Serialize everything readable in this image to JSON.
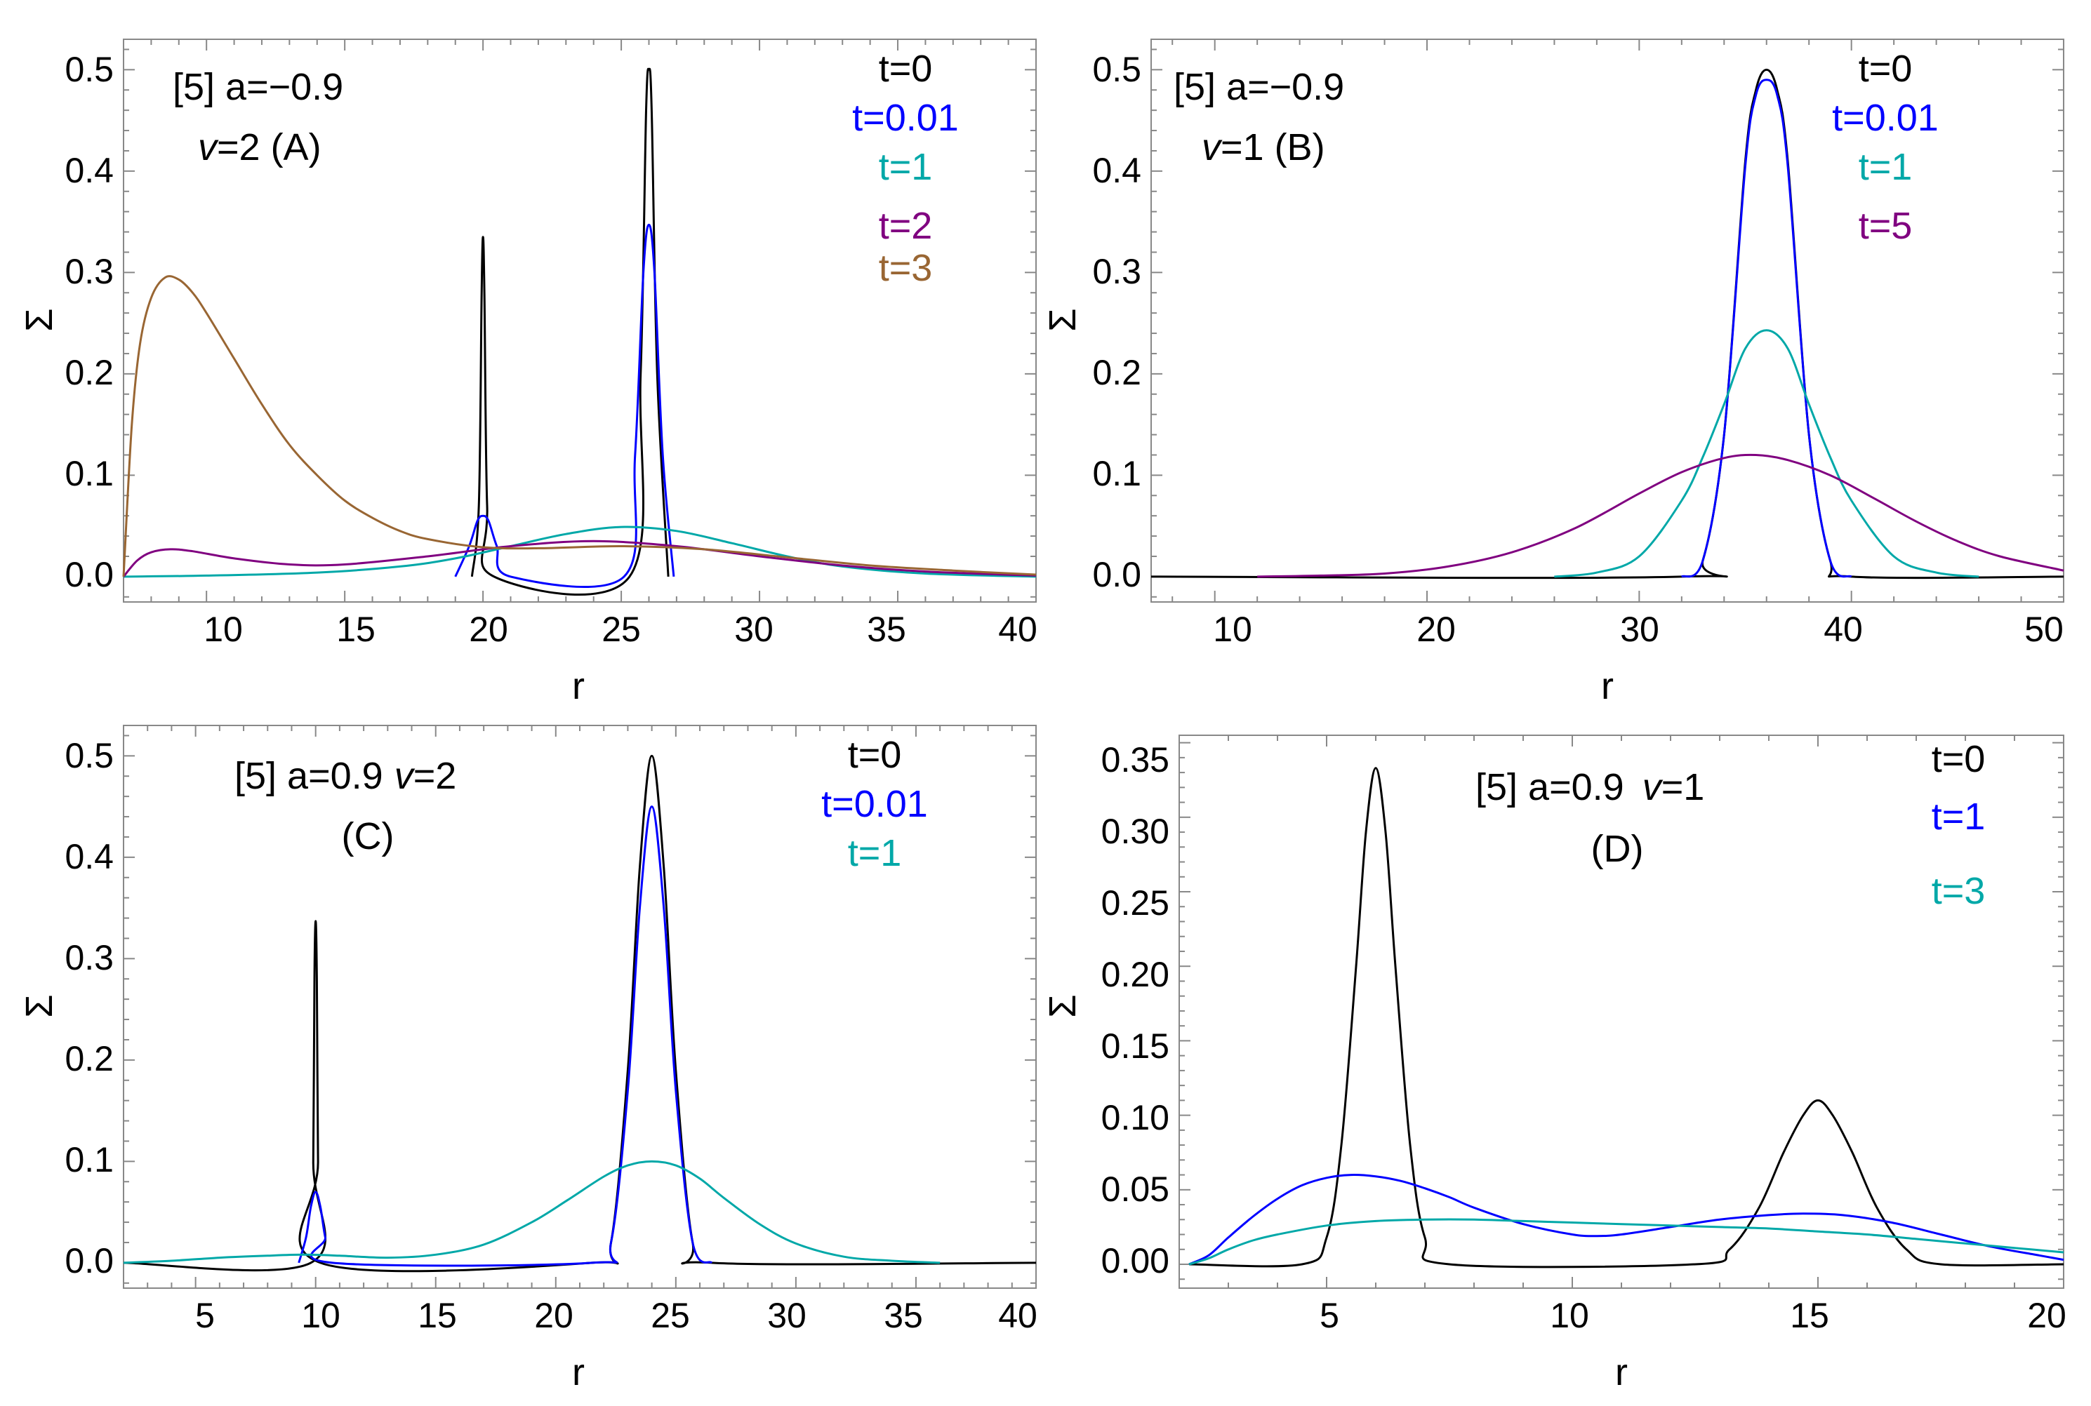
{
  "figure": {
    "colors": {
      "black": "#000000",
      "blue": "#0000ff",
      "cyan": "#00a8a8",
      "purple": "#800080",
      "brown": "#996633",
      "frame": "#888888"
    }
  },
  "chart_data": [
    {
      "id": "A",
      "type": "line",
      "xlabel": "r",
      "ylabel": "Σ",
      "xlim": [
        7,
        40
      ],
      "ylim": [
        -0.025,
        0.53
      ],
      "xticks": [
        10,
        15,
        20,
        25,
        30,
        35,
        40
      ],
      "xtick_labels": [
        "10",
        "15",
        "20",
        "25",
        "30",
        "35",
        "40"
      ],
      "yticks": [
        0,
        0.1,
        0.2,
        0.3,
        0.4,
        0.5
      ],
      "ytick_labels": [
        "0.0",
        "0.1",
        "0.2",
        "0.3",
        "0.4",
        "0.5"
      ],
      "annotation": [
        "[5] a=−0.9",
        "v",
        "=2 (A)"
      ],
      "legend": [
        "t=0",
        "t=0.01",
        "t=1",
        "t=2",
        "t=3"
      ],
      "series": [
        {
          "name": "t=0",
          "color": "black",
          "x": [
            19.6,
            19.85,
            19.95,
            20.0,
            20.05,
            20.15,
            20.4,
            25.3,
            25.7,
            25.9,
            26.0,
            26.1,
            26.3,
            26.7
          ],
          "y": [
            0,
            0.07,
            0.28,
            0.335,
            0.28,
            0.07,
            0,
            0,
            0.2,
            0.46,
            0.5,
            0.46,
            0.2,
            0
          ]
        },
        {
          "name": "t=0.01",
          "color": "blue",
          "x": [
            19.0,
            19.5,
            19.8,
            20.0,
            20.2,
            20.5,
            21.0,
            25.1,
            25.5,
            25.8,
            26.0,
            26.2,
            26.5,
            26.9
          ],
          "y": [
            0,
            0.03,
            0.055,
            0.06,
            0.055,
            0.03,
            0,
            0,
            0.12,
            0.3,
            0.347,
            0.3,
            0.12,
            0
          ]
        },
        {
          "name": "t=1",
          "color": "cyan",
          "x": [
            7,
            10,
            14,
            17,
            19,
            21,
            23,
            25,
            27,
            29,
            31,
            33,
            36,
            40
          ],
          "y": [
            0,
            0.001,
            0.004,
            0.01,
            0.018,
            0.03,
            0.042,
            0.049,
            0.045,
            0.033,
            0.02,
            0.01,
            0.003,
            0
          ]
        },
        {
          "name": "t=2",
          "color": "purple",
          "x": [
            7,
            7.5,
            8,
            8.7,
            9.5,
            11,
            13,
            15,
            18,
            21,
            24,
            27,
            30,
            33,
            36,
            40
          ],
          "y": [
            0,
            0.016,
            0.024,
            0.027,
            0.025,
            0.018,
            0.012,
            0.012,
            0.02,
            0.03,
            0.035,
            0.03,
            0.02,
            0.011,
            0.005,
            0.001
          ]
        },
        {
          "name": "t=3",
          "color": "brown",
          "x": [
            7,
            7.3,
            7.6,
            8.0,
            8.5,
            9.0,
            9.5,
            10,
            11,
            12,
            13,
            14,
            15,
            16,
            17,
            18,
            20,
            22,
            25,
            28,
            31,
            34,
            37,
            40
          ],
          "y": [
            0,
            0.15,
            0.23,
            0.275,
            0.295,
            0.293,
            0.28,
            0.26,
            0.215,
            0.17,
            0.13,
            0.1,
            0.075,
            0.058,
            0.045,
            0.037,
            0.029,
            0.028,
            0.03,
            0.027,
            0.019,
            0.011,
            0.006,
            0.002
          ]
        }
      ]
    },
    {
      "id": "B",
      "type": "line",
      "xlabel": "r",
      "ylabel": "Σ",
      "xlim": [
        7,
        50
      ],
      "ylim": [
        -0.025,
        0.53
      ],
      "xticks": [
        10,
        20,
        30,
        40,
        50
      ],
      "xtick_labels": [
        "10",
        "20",
        "30",
        "40",
        "50"
      ],
      "yticks": [
        0,
        0.1,
        0.2,
        0.3,
        0.4,
        0.5
      ],
      "ytick_labels": [
        "0.0",
        "0.1",
        "0.2",
        "0.3",
        "0.4",
        "0.5"
      ],
      "annotation": [
        "[5] a=−0.9",
        "v",
        "=1 (B)"
      ],
      "legend": [
        "t=0",
        "t=0.01",
        "t=1",
        "t=5"
      ],
      "series": [
        {
          "name": "t=0",
          "color": "black",
          "x": [
            7,
            32.0,
            33.0,
            34.0,
            35.0,
            35.5,
            36.0,
            36.5,
            37.0,
            38.0,
            39.0,
            40.0,
            50
          ],
          "y": [
            0,
            0,
            0.016,
            0.14,
            0.41,
            0.48,
            0.5,
            0.48,
            0.41,
            0.14,
            0.016,
            0,
            0
          ]
        },
        {
          "name": "t=0.01",
          "color": "blue",
          "x": [
            32.0,
            33.0,
            34.0,
            35.0,
            35.5,
            36.0,
            36.5,
            37.0,
            38.0,
            39.0,
            40.0
          ],
          "y": [
            0,
            0.016,
            0.14,
            0.405,
            0.475,
            0.49,
            0.475,
            0.405,
            0.14,
            0.016,
            0
          ]
        },
        {
          "name": "t=1",
          "color": "cyan",
          "x": [
            26,
            28,
            30,
            32,
            33,
            34,
            35,
            36,
            37,
            38,
            39,
            40,
            42,
            44,
            46
          ],
          "y": [
            0,
            0.004,
            0.02,
            0.075,
            0.118,
            0.17,
            0.225,
            0.243,
            0.225,
            0.17,
            0.118,
            0.075,
            0.02,
            0.004,
            0
          ]
        },
        {
          "name": "t=5",
          "color": "purple",
          "x": [
            12,
            15,
            18,
            21,
            24,
            27,
            30,
            32,
            34,
            35.5,
            37,
            39,
            41,
            43,
            45,
            47,
            50
          ],
          "y": [
            0,
            0.001,
            0.003,
            0.01,
            0.024,
            0.048,
            0.082,
            0.103,
            0.117,
            0.12,
            0.115,
            0.1,
            0.078,
            0.055,
            0.035,
            0.02,
            0.006
          ]
        }
      ]
    },
    {
      "id": "C",
      "type": "line",
      "xlabel": "r",
      "ylabel": "Σ",
      "xlim": [
        2,
        40
      ],
      "ylim": [
        -0.025,
        0.53
      ],
      "xticks": [
        5,
        10,
        15,
        20,
        25,
        30,
        35,
        40
      ],
      "xtick_labels": [
        "5",
        "10",
        "15",
        "20",
        "25",
        "30",
        "35",
        "40"
      ],
      "yticks": [
        0,
        0.1,
        0.2,
        0.3,
        0.4,
        0.5
      ],
      "ytick_labels": [
        "0.0",
        "0.1",
        "0.2",
        "0.3",
        "0.4",
        "0.5"
      ],
      "annotation": [
        "[5] a=0.9",
        "v",
        "=2",
        "(C)"
      ],
      "legend": [
        "t=0",
        "t=0.01",
        "t=1"
      ],
      "series": [
        {
          "name": "t=0",
          "color": "black",
          "x": [
            2,
            9.8,
            9.9,
            9.95,
            10.0,
            10.05,
            10.1,
            10.2,
            21.5,
            22.3,
            23.0,
            23.5,
            24.0,
            24.5,
            25.0,
            25.7,
            26.5,
            40
          ],
          "y": [
            0,
            0,
            0.1,
            0.28,
            0.337,
            0.28,
            0.1,
            0,
            0,
            0.02,
            0.19,
            0.39,
            0.5,
            0.39,
            0.19,
            0.02,
            0,
            0
          ]
        },
        {
          "name": "t=0.01",
          "color": "blue",
          "x": [
            9.3,
            9.6,
            9.8,
            10.0,
            10.2,
            10.4,
            10.7,
            21.5,
            22.3,
            23.0,
            23.5,
            24.0,
            24.5,
            25.0,
            25.7,
            26.5
          ],
          "y": [
            0,
            0.025,
            0.055,
            0.07,
            0.055,
            0.025,
            0,
            0,
            0.02,
            0.17,
            0.35,
            0.45,
            0.35,
            0.17,
            0.02,
            0
          ]
        },
        {
          "name": "t=1",
          "color": "cyan",
          "x": [
            2,
            4,
            6,
            8,
            9.5,
            11,
            13,
            15,
            17,
            19,
            20.5,
            22,
            23,
            24,
            25,
            26,
            27,
            28.5,
            30,
            32,
            34,
            36
          ],
          "y": [
            0,
            0.002,
            0.005,
            0.007,
            0.008,
            0.007,
            0.005,
            0.008,
            0.018,
            0.04,
            0.062,
            0.085,
            0.096,
            0.1,
            0.096,
            0.083,
            0.064,
            0.038,
            0.019,
            0.006,
            0.002,
            0
          ]
        }
      ]
    },
    {
      "id": "D",
      "type": "line",
      "xlabel": "r",
      "ylabel": "Σ",
      "xlim": [
        2,
        20
      ],
      "ylim": [
        -0.016,
        0.355
      ],
      "xticks": [
        5,
        10,
        15,
        20
      ],
      "xtick_labels": [
        "5",
        "10",
        "15",
        "20"
      ],
      "yticks": [
        0,
        0.05,
        0.1,
        0.15,
        0.2,
        0.25,
        0.3,
        0.35
      ],
      "ytick_labels": [
        "0.00",
        "0.05",
        "0.10",
        "0.15",
        "0.20",
        "0.25",
        "0.30",
        "0.35"
      ],
      "annotation": [
        "[5] a=0.9",
        "v",
        "=1",
        "(D)"
      ],
      "legend": [
        "t=0",
        "t=1",
        "t=3"
      ],
      "series": [
        {
          "name": "t=0",
          "color": "black",
          "x": [
            2.2,
            4.5,
            5.0,
            5.3,
            5.6,
            5.8,
            6.0,
            6.2,
            6.4,
            6.7,
            7.0,
            7.5,
            12.5,
            13.2,
            13.8,
            14.3,
            14.7,
            15.0,
            15.3,
            15.7,
            16.2,
            16.8,
            17.5,
            20
          ],
          "y": [
            0,
            0,
            0.018,
            0.08,
            0.2,
            0.29,
            0.333,
            0.29,
            0.2,
            0.08,
            0.018,
            0,
            0,
            0.01,
            0.038,
            0.075,
            0.1,
            0.11,
            0.1,
            0.075,
            0.038,
            0.01,
            0,
            0
          ]
        },
        {
          "name": "t=1",
          "color": "blue",
          "x": [
            2.2,
            2.6,
            3,
            3.5,
            4,
            4.5,
            5,
            5.5,
            6,
            6.5,
            7,
            7.5,
            8,
            9,
            10,
            10.5,
            11,
            12,
            13,
            14,
            14.7,
            15.5,
            16.5,
            17.5,
            18.5,
            19.5,
            20
          ],
          "y": [
            0,
            0.006,
            0.018,
            0.032,
            0.044,
            0.053,
            0.058,
            0.06,
            0.059,
            0.056,
            0.051,
            0.045,
            0.038,
            0.027,
            0.02,
            0.019,
            0.02,
            0.025,
            0.03,
            0.033,
            0.034,
            0.033,
            0.028,
            0.02,
            0.012,
            0.006,
            0.003
          ]
        },
        {
          "name": "t=3",
          "color": "cyan",
          "x": [
            2.2,
            2.6,
            3,
            3.5,
            4,
            5,
            6,
            7,
            8,
            9,
            10,
            11,
            12,
            13,
            14,
            15,
            16,
            17,
            18,
            19,
            20
          ],
          "y": [
            0,
            0.004,
            0.01,
            0.016,
            0.02,
            0.026,
            0.029,
            0.03,
            0.03,
            0.029,
            0.028,
            0.027,
            0.026,
            0.025,
            0.024,
            0.022,
            0.02,
            0.017,
            0.014,
            0.011,
            0.008
          ]
        }
      ]
    }
  ]
}
